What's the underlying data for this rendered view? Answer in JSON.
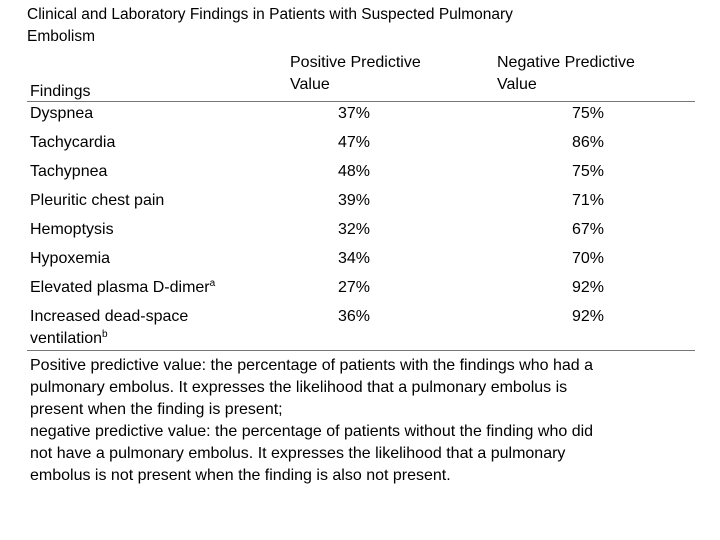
{
  "title": [
    "Clinical and Laboratory Findings in Patients with Suspected Pulmonary",
    "Embolism"
  ],
  "table": {
    "headers": {
      "finding": [
        "Findings"
      ],
      "ppv": [
        "Positive Predictive",
        "Value"
      ],
      "npv": [
        "Negative Predictive",
        "Value"
      ]
    },
    "rows": [
      {
        "finding": [
          "Dyspnea"
        ],
        "ppv": "37%",
        "npv": "75%"
      },
      {
        "finding": [
          "Tachycardia"
        ],
        "ppv": "47%",
        "npv": "86%"
      },
      {
        "finding": [
          "Tachypnea"
        ],
        "ppv": "48%",
        "npv": "75%"
      },
      {
        "finding": [
          "Pleuritic chest pain"
        ],
        "ppv": "39%",
        "npv": "71%"
      },
      {
        "finding": [
          "Hemoptysis"
        ],
        "ppv": "32%",
        "npv": "67%"
      },
      {
        "finding": [
          "Hypoxemia"
        ],
        "ppv": "34%",
        "npv": "70%"
      },
      {
        "finding": [
          "Elevated plasma D-dimer"
        ],
        "note": "a",
        "ppv": "27%",
        "npv": "92%"
      },
      {
        "finding": [
          "Increased dead-space",
          "ventilation"
        ],
        "note": "b",
        "ppv": "36%",
        "npv": "92%"
      }
    ]
  },
  "footnote": [
    "Positive predictive value: the percentage of patients with the findings who had a",
    "pulmonary embolus. It expresses the likelihood that a pulmonary embolus is",
    "present when the finding is present;",
    "negative predictive value: the percentage of patients without the finding who did",
    "not have a pulmonary embolus. It expresses the likelihood that a pulmonary",
    "embolus is not present when the finding is also not present."
  ]
}
